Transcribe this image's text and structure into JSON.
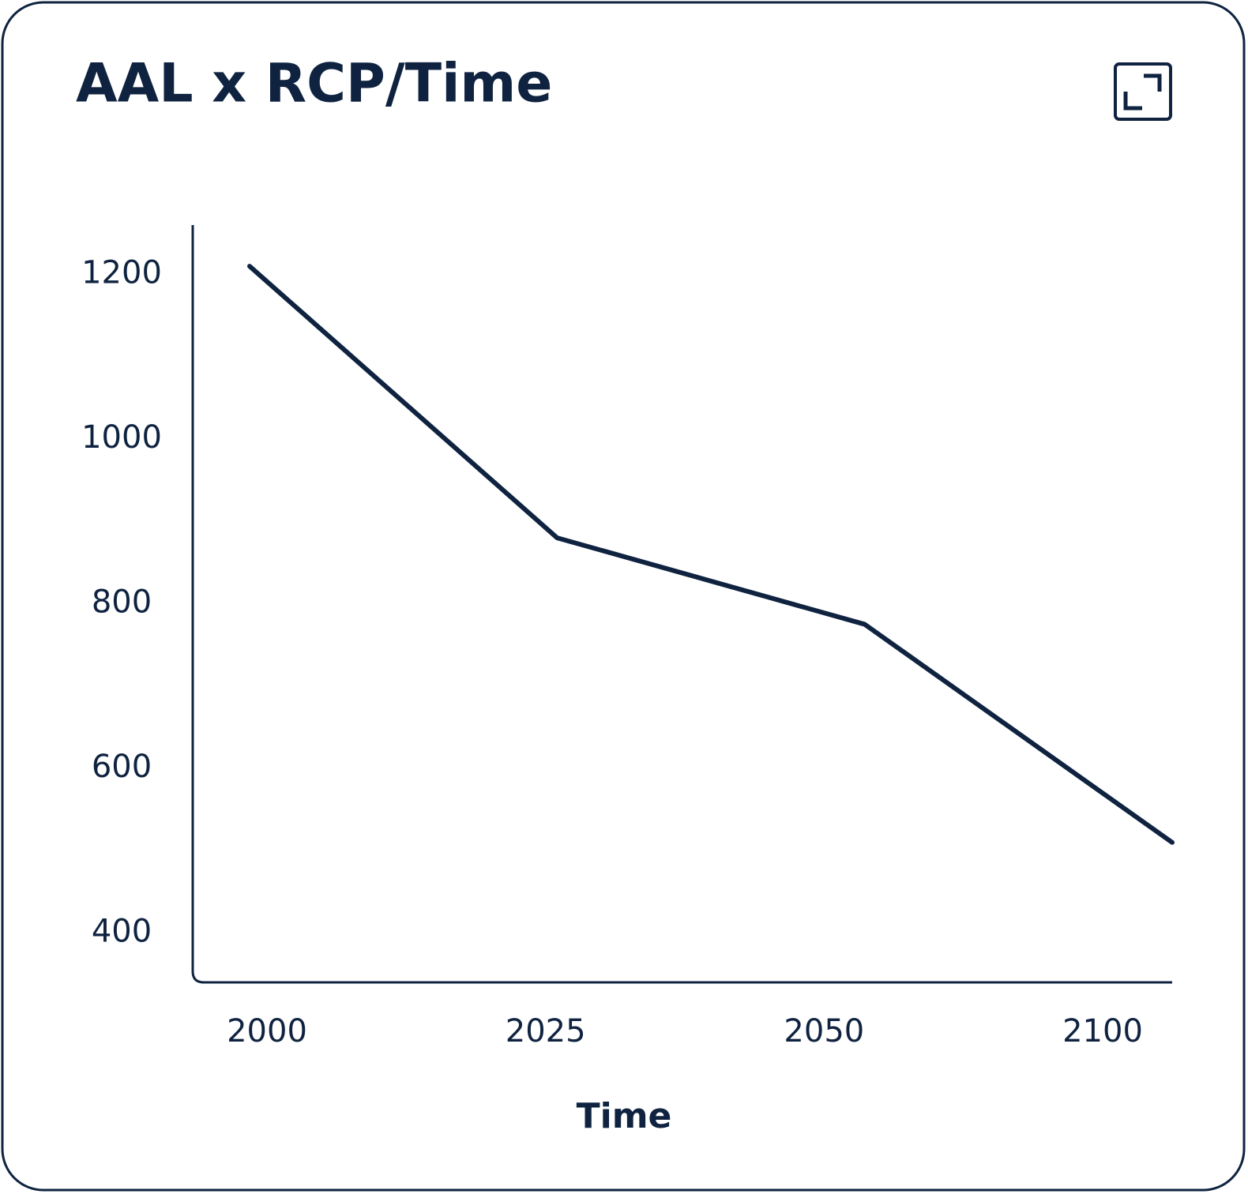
{
  "chart_data": {
    "type": "line",
    "title": "AAL x RCP/Time",
    "x_label": "Time",
    "categories": [
      "2000",
      "2025",
      "2050",
      "2100"
    ],
    "series": [
      {
        "name": "AAL",
        "color": "#0f2340",
        "values": [
          1210,
          880,
          775,
          510
        ]
      }
    ],
    "ylim": [
      340,
      1260
    ],
    "yticks": [
      400,
      600,
      800,
      1000,
      1200
    ],
    "grid": false
  }
}
